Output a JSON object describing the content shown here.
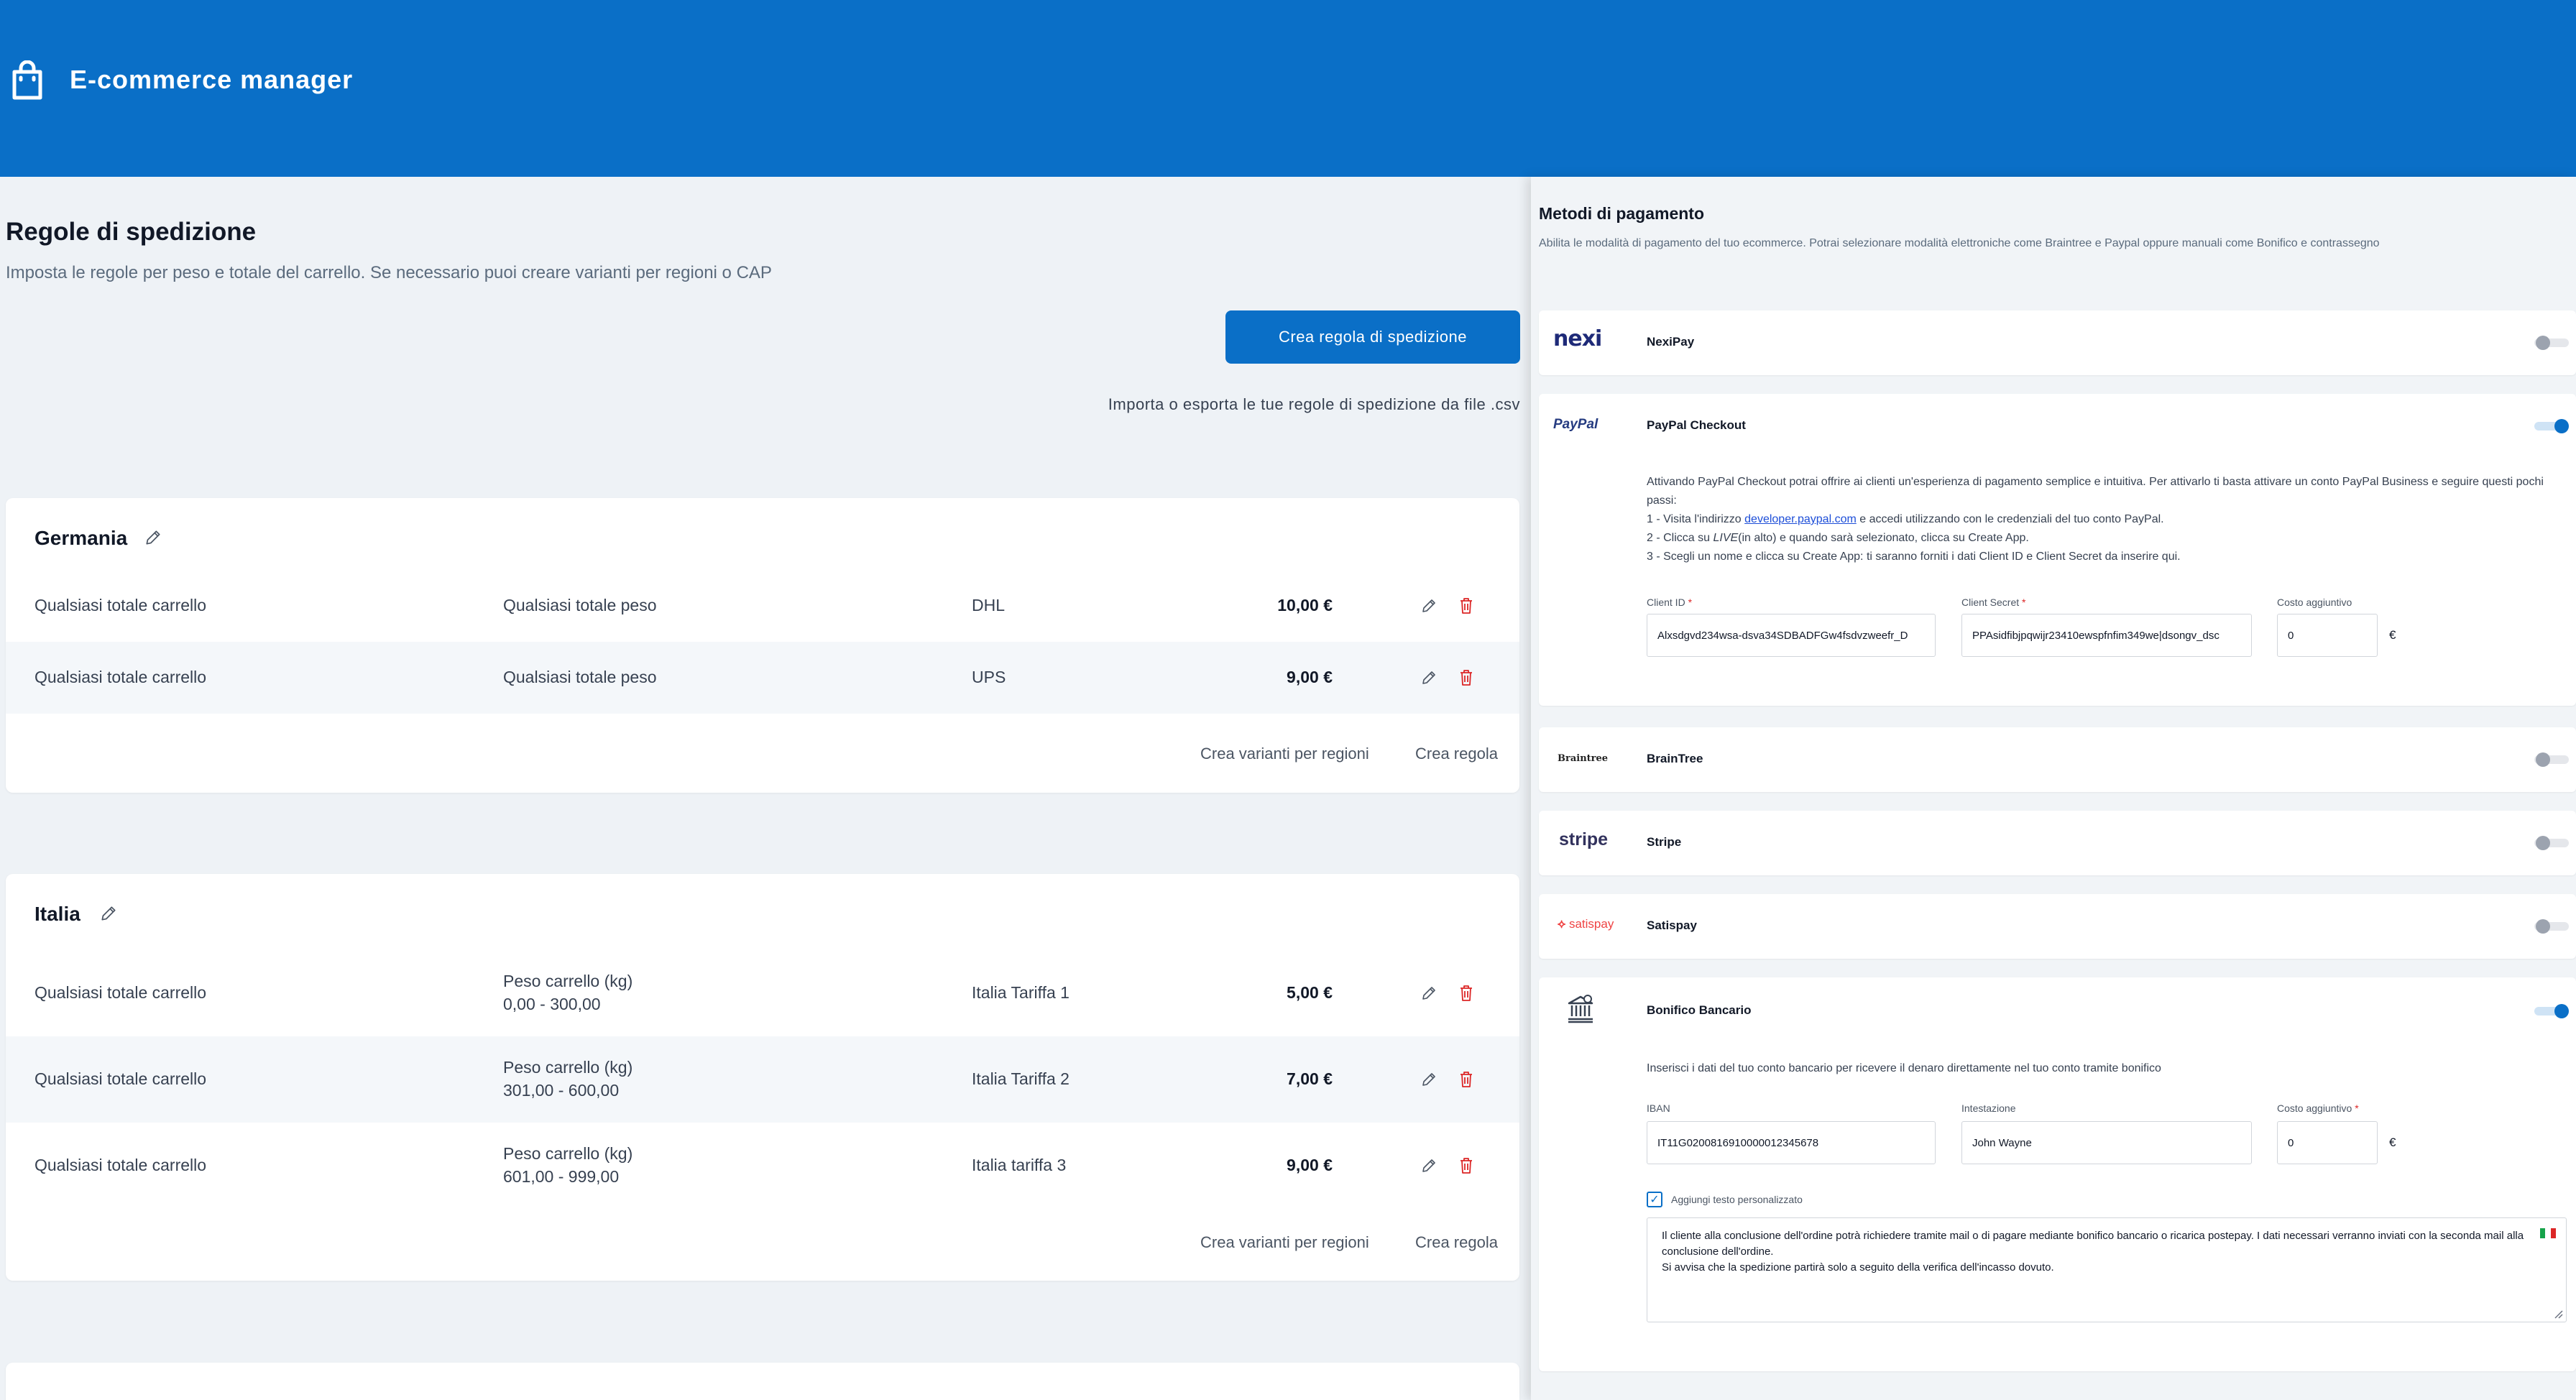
{
  "header": {
    "app_title": "E-commerce manager",
    "icon": "shopping-bag-icon"
  },
  "shipping": {
    "title": "Regole di spedizione",
    "subtitle": "Imposta le regole per peso e totale del carrello. Se necessario puoi creare varianti per regioni o CAP",
    "create_button": "Crea regola di spedizione",
    "import_link": "Importa o esporta le tue regole di spedizione da file .csv",
    "cards": [
      {
        "name": "Germania",
        "rows": [
          {
            "cart": "Qualsiasi totale carrello",
            "weight_label": "Qualsiasi totale peso",
            "weight_range": "",
            "carrier": "DHL",
            "price": "10,00 €"
          },
          {
            "cart": "Qualsiasi totale carrello",
            "weight_label": "Qualsiasi totale peso",
            "weight_range": "",
            "carrier": "UPS",
            "price": "9,00 €"
          }
        ],
        "variants_link": "Crea varianti per regioni",
        "create_link": "Crea regola"
      },
      {
        "name": "Italia",
        "rows": [
          {
            "cart": "Qualsiasi totale carrello",
            "weight_label": "Peso carrello (kg)",
            "weight_range": "0,00 - 300,00",
            "carrier": "Italia Tariffa 1",
            "price": "5,00 €"
          },
          {
            "cart": "Qualsiasi totale carrello",
            "weight_label": "Peso carrello (kg)",
            "weight_range": "301,00 - 600,00",
            "carrier": "Italia Tariffa 2",
            "price": "7,00 €"
          },
          {
            "cart": "Qualsiasi totale carrello",
            "weight_label": "Peso carrello (kg)",
            "weight_range": "601,00 - 999,00",
            "carrier": "Italia tariffa 3",
            "price": "9,00 €"
          }
        ],
        "variants_link": "Crea varianti per regioni",
        "create_link": "Crea regola"
      }
    ]
  },
  "payments": {
    "title": "Metodi di pagamento",
    "subtitle": "Abilita le modalità di pagamento del tuo ecommerce. Potrai selezionare modalità elettroniche come Braintree e Paypal oppure manuali come Bonifico e contrassegno",
    "nexi": {
      "logo": "nexi",
      "name": "NexiPay",
      "enabled": false
    },
    "paypal": {
      "logo": "PayPal",
      "name": "PayPal Checkout",
      "enabled": true,
      "desc_intro": "Attivando PayPal Checkout potrai offrire ai clienti un'esperienza di pagamento semplice e intuitiva. Per attivarlo ti basta attivare un conto PayPal Business e seguire questi pochi passi:",
      "step1_pre": "1 - Visita l'indirizzo ",
      "step1_link": "developer.paypal.com",
      "step1_post": " e accedi utilizzando con le credenziali del tuo conto PayPal.",
      "step2_pre": "2 - Clicca su ",
      "step2_em": "LIVE",
      "step2_post": "(in alto) e quando sarà selezionato, clicca su Create App.",
      "step3": "3 - Scegli un nome e clicca su Create App: ti saranno forniti i dati Client ID e Client Secret da inserire qui.",
      "client_id_label": "Client ID",
      "client_id_value": "Alxsdgvd234wsa-dsva34SDBADFGw4fsdvzweefr_D",
      "client_secret_label": "Client Secret",
      "client_secret_value": "PPAsidfibjpqwijr23410ewspfnfim349we|dsongv_dsc",
      "cost_label": "Costo aggiuntivo",
      "cost_value": "0",
      "currency": "€",
      "required_mark": "*"
    },
    "braintree": {
      "logo": "Braintree",
      "name": "BrainTree",
      "enabled": false
    },
    "stripe": {
      "logo": "stripe",
      "name": "Stripe",
      "enabled": false
    },
    "satispay": {
      "logo": "satispay",
      "name": "Satispay",
      "enabled": false
    },
    "bonifico": {
      "name": "Bonifico Bancario",
      "enabled": true,
      "desc": "Inserisci i dati del tuo conto bancario per ricevere il denaro direttamente nel tuo conto tramite bonifico",
      "iban_label": "IBAN",
      "iban_value": "IT11G0200816910000012345678",
      "holder_label": "Intestazione",
      "holder_value": "John Wayne",
      "cost_label": "Costo aggiuntivo",
      "cost_value": "0",
      "currency": "€",
      "required_mark": "*",
      "custom_text_label": "Aggiungi testo personalizzato",
      "custom_text_checked": true,
      "custom_text_line1": "Il cliente  alla conclusione dell'ordine potrà richiedere tramite mail o  di pagare mediante bonifico bancario o  ricarica postepay.  I dati necessari verranno inviati con la seconda mail alla conclusione dell'ordine.",
      "custom_text_line2": "Si avvisa che la spedizione partirà solo a seguito della verifica dell'incasso dovuto.",
      "flag_icon": "italy-flag-icon"
    }
  },
  "colors": {
    "primary": "#0a6fc7",
    "danger": "#dc2626",
    "background": "#eef2f6"
  }
}
